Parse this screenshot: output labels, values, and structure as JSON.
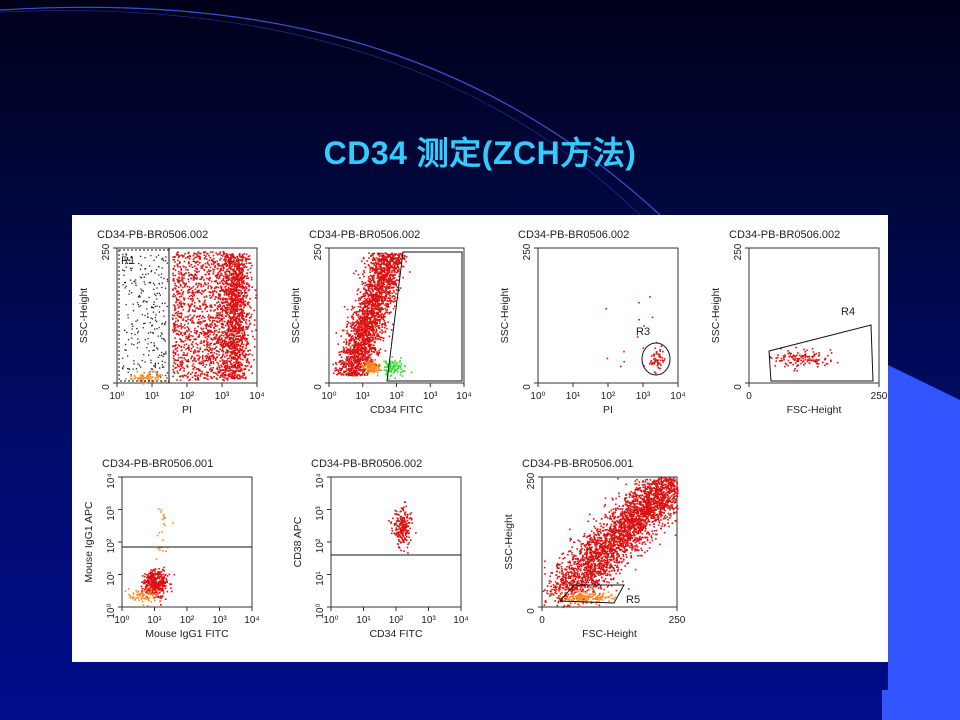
{
  "slide": {
    "title": "CD34 测定(ZCH方法)"
  },
  "colors": {
    "background": "#000b6e",
    "title": "#33ccff",
    "deco_band": "#3355ff",
    "events_main": "#dd1111",
    "events_orange": "#ff8822",
    "events_green": "#33dd33"
  },
  "plots": [
    {
      "file": "CD34-PB-BR0506.002",
      "x_label": "PI",
      "y_label": "SSC-Height",
      "x_ticks": [
        "10⁰",
        "10¹",
        "10²",
        "10³",
        "10⁴"
      ],
      "y_ticks": [
        "250",
        "0"
      ],
      "gates": [
        "R1"
      ]
    },
    {
      "file": "CD34-PB-BR0506.002",
      "x_label": "CD34 FITC",
      "y_label": "SSC-Height",
      "x_ticks": [
        "10⁰",
        "10¹",
        "10²",
        "10³",
        "10⁴"
      ],
      "y_ticks": [
        "250",
        "0"
      ],
      "gates": []
    },
    {
      "file": "CD34-PB-BR0506.002",
      "x_label": "PI",
      "y_label": "SSC-Height",
      "x_ticks": [
        "10⁰",
        "10¹",
        "10²",
        "10³",
        "10⁴"
      ],
      "y_ticks": [
        "250",
        "0"
      ],
      "gates": [
        "R3"
      ]
    },
    {
      "file": "CD34-PB-BR0506.002",
      "x_label": "FSC-Height",
      "y_label": "SSC-Height",
      "x_ticks": [
        "0",
        "250"
      ],
      "y_ticks": [
        "250",
        "0"
      ],
      "gates": [
        "R4"
      ]
    },
    {
      "file": "CD34-PB-BR0506.001",
      "x_label": "Mouse IgG1 FITC",
      "y_label": "Mouse IgG1 APC",
      "x_ticks": [
        "10⁰",
        "10¹",
        "10²",
        "10³",
        "10⁴"
      ],
      "y_ticks": [
        "10⁴",
        "10³",
        "10²",
        "10¹",
        "10⁰"
      ],
      "gates": []
    },
    {
      "file": "CD34-PB-BR0506.002",
      "x_label": "CD34 FITC",
      "y_label": "CD38 APC",
      "x_ticks": [
        "10⁰",
        "10¹",
        "10²",
        "10³",
        "10⁴"
      ],
      "y_ticks": [
        "10⁴",
        "10³",
        "10²",
        "10¹",
        "10⁰"
      ],
      "gates": []
    },
    {
      "file": "CD34-PB-BR0506.001",
      "x_label": "FSC-Height",
      "y_label": "SSC-Height",
      "x_ticks": [
        "0",
        "250"
      ],
      "y_ticks": [
        "250",
        "0"
      ],
      "gates": [
        "R5"
      ]
    }
  ]
}
